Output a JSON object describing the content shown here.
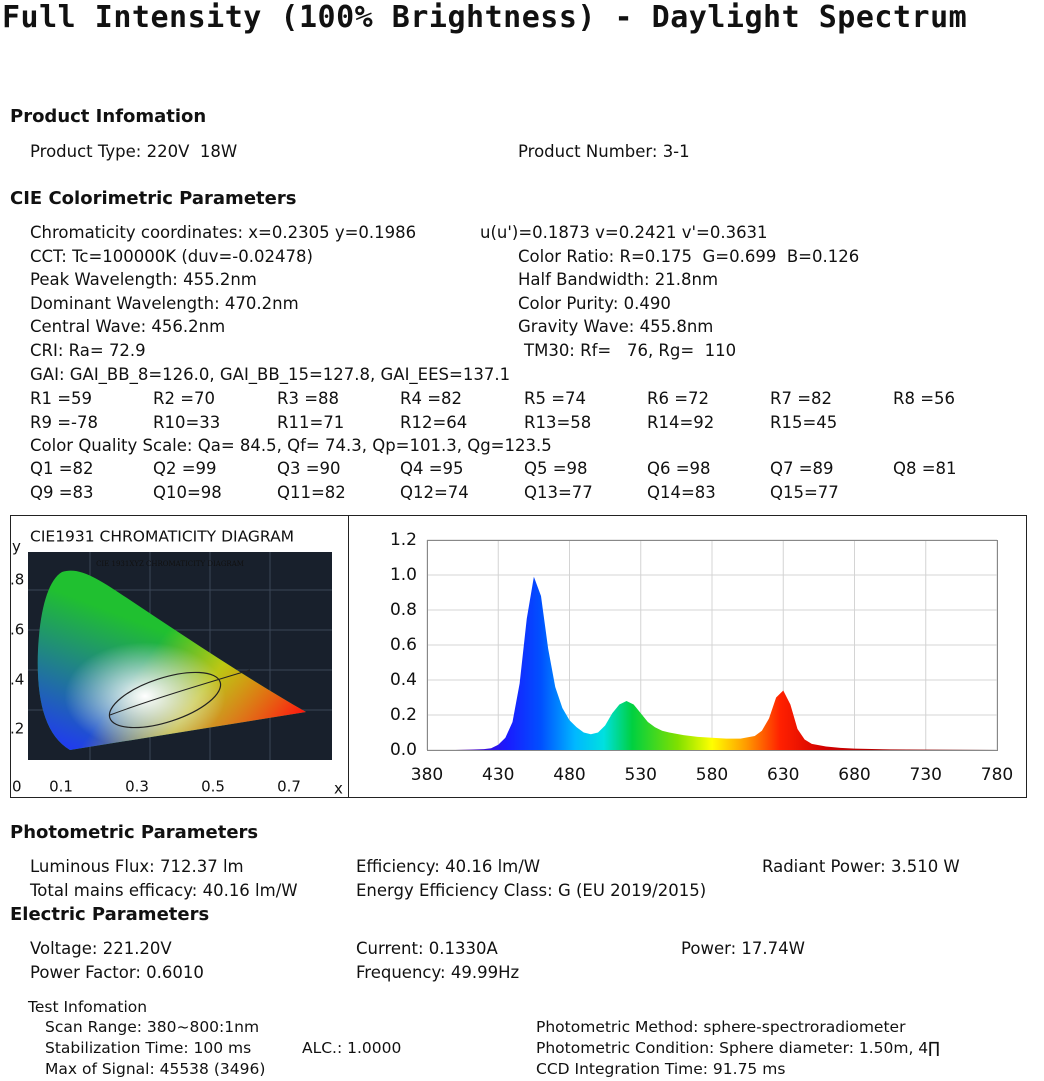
{
  "title": "Full Intensity (100% Brightness) - Daylight Spectrum",
  "product": {
    "heading": "Product Infomation",
    "rows": [
      [
        "Product Type: 220V  18W",
        "Product Number: 3-1"
      ]
    ]
  },
  "cie": {
    "heading": "CIE Colorimetric Parameters",
    "rows": [
      [
        "Chromaticity coordinates: x=0.2305 y=0.1986",
        "u(u')=0.1873 v=0.2421 v'=0.3631"
      ],
      [
        "CCT: Tc=100000K (duv=-0.02478)",
        "Color Ratio: R=0.175  G=0.699  B=0.126"
      ],
      [
        "Peak Wavelength: 455.2nm",
        "Half Bandwidth: 21.8nm"
      ],
      [
        "Dominant Wavelength: 470.2nm",
        "Color Purity: 0.490"
      ],
      [
        "Central Wave: 456.2nm",
        "Gravity Wave: 455.8nm"
      ],
      [
        "CRI: Ra= 72.9",
        "TM30: Rf=   76, Rg=  110"
      ],
      [
        "GAI: GAI_BB_8=126.0, GAI_BB_15=127.8, GAI_EES=137.1"
      ]
    ],
    "r_indices": [
      [
        "R1 =59",
        "R2 =70",
        "R3 =88",
        "R4 =82",
        "R5 =74",
        "R6 =72",
        "R7 =82",
        "R8 =56"
      ],
      [
        "R9 =-78",
        "R10=33",
        "R11=71",
        "R12=64",
        "R13=58",
        "R14=92",
        "R15=45"
      ]
    ],
    "cqs": "Color Quality Scale: Qa= 84.5, Qf= 74.3, Qp=101.3, Qg=123.5",
    "q_indices": [
      [
        "Q1 =82",
        "Q2 =99",
        "Q3 =90",
        "Q4 =95",
        "Q5 =98",
        "Q6 =98",
        "Q7 =89",
        "Q8 =81"
      ],
      [
        "Q9 =83",
        "Q10=98",
        "Q11=82",
        "Q12=74",
        "Q13=77",
        "Q14=83",
        "Q15=77"
      ]
    ]
  },
  "diagram": {
    "title": "CIE1931 CHROMATICITY DIAGRAM",
    "image_title": "CIE 1931XYZ CHROMATICITY DIAGRAM",
    "y_label": "y",
    "x_label": "x",
    "y_ticks": [
      ".8",
      ".6",
      ".4",
      ".2"
    ],
    "origin": "0",
    "x_ticks": [
      "0.1",
      "0.3",
      "0.5",
      "0.7"
    ]
  },
  "spectrum": {
    "type": "area",
    "x": [
      380,
      400,
      410,
      420,
      425,
      430,
      435,
      440,
      445,
      450,
      455,
      460,
      465,
      470,
      475,
      480,
      485,
      490,
      495,
      500,
      505,
      510,
      515,
      520,
      525,
      530,
      535,
      540,
      545,
      550,
      560,
      570,
      580,
      590,
      600,
      610,
      615,
      620,
      625,
      630,
      635,
      640,
      645,
      650,
      660,
      670,
      680,
      700,
      730,
      780
    ],
    "values": [
      0,
      0,
      0.002,
      0.005,
      0.01,
      0.03,
      0.07,
      0.16,
      0.38,
      0.75,
      0.99,
      0.88,
      0.58,
      0.36,
      0.24,
      0.17,
      0.13,
      0.1,
      0.09,
      0.1,
      0.14,
      0.21,
      0.26,
      0.28,
      0.26,
      0.21,
      0.16,
      0.13,
      0.11,
      0.1,
      0.085,
      0.075,
      0.07,
      0.065,
      0.065,
      0.08,
      0.11,
      0.18,
      0.3,
      0.34,
      0.26,
      0.12,
      0.06,
      0.035,
      0.02,
      0.012,
      0.008,
      0.004,
      0.002,
      0
    ],
    "xlim": [
      380,
      780
    ],
    "ylim": [
      0,
      1.2
    ],
    "xticks": [
      380,
      430,
      480,
      530,
      580,
      630,
      680,
      730,
      780
    ],
    "yticks": [
      {
        "value": 0,
        "label": "0.0"
      },
      0.2,
      0.4,
      0.6,
      0.8,
      {
        "value": 1,
        "label": "1.0"
      },
      1.2
    ],
    "grid": true
  },
  "photometric": {
    "heading": "Photometric Parameters",
    "rows": [
      [
        "Luminous Flux: 712.37 lm",
        "Efficiency: 40.16 lm/W",
        "Radiant Power: 3.510 W"
      ],
      [
        "Total mains efficacy: 40.16 lm/W",
        "Energy Efficiency Class: G (EU 2019/2015)"
      ]
    ]
  },
  "electric": {
    "heading": "Electric Parameters",
    "rows": [
      [
        "Voltage: 221.20V",
        "Current: 0.1330A",
        "Power: 17.74W"
      ],
      [
        "Power Factor: 0.6010",
        "Frequency: 49.99Hz"
      ]
    ]
  },
  "test": {
    "heading": "Test Infomation",
    "rows": [
      [
        "Scan Range: 380~800:1nm",
        "Photometric Method: sphere-spectroradiometer"
      ],
      [
        "Stabilization Time: 100 ms",
        "ALC.: 1.0000",
        "Photometric Condition: Sphere diameter: 1.50m, 4∏"
      ],
      [
        "Max of Signal: 45538 (3496)",
        "CCD Integration Time: 91.75 ms"
      ]
    ]
  }
}
